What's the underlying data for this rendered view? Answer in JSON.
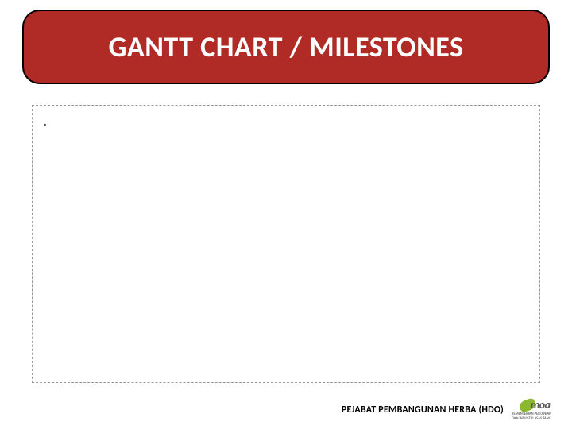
{
  "title": "GANTT CHART / MILESTONES",
  "content_placeholder": ".",
  "footer_text": "PEJABAT PEMBANGUNAN HERBA (HDO)",
  "logo": {
    "name": "moa",
    "sub1": "KEMENTERIAN PERTANIAN",
    "sub2": "DAN INDUSTRI ASAS TANI",
    "swoosh_color": "#8ab82e",
    "text_color": "#5a5a5a"
  },
  "colors": {
    "banner_bg": "#b02a26",
    "banner_text": "#ffffff",
    "banner_border": "#000000",
    "box_border": "#999999",
    "page_bg": "#ffffff"
  }
}
